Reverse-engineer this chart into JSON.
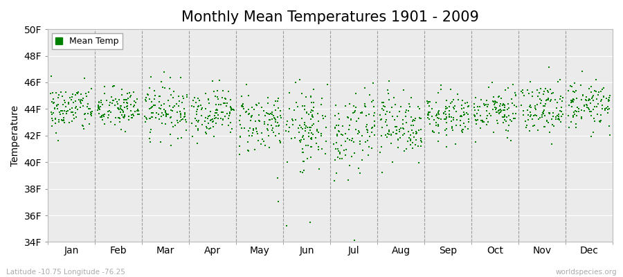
{
  "title": "Monthly Mean Temperatures 1901 - 2009",
  "ylabel": "Temperature",
  "ylim": [
    34,
    50
  ],
  "ytick_labels": [
    "34F",
    "36F",
    "38F",
    "40F",
    "42F",
    "44F",
    "46F",
    "48F",
    "50F"
  ],
  "ytick_values": [
    34,
    36,
    38,
    40,
    42,
    44,
    46,
    48,
    50
  ],
  "months": [
    "Jan",
    "Feb",
    "Mar",
    "Apr",
    "May",
    "Jun",
    "Jul",
    "Aug",
    "Sep",
    "Oct",
    "Nov",
    "Dec"
  ],
  "month_positions": [
    0.5,
    1.5,
    2.5,
    3.5,
    4.5,
    5.5,
    6.5,
    7.5,
    8.5,
    9.5,
    10.5,
    11.5
  ],
  "dot_color": "#008000",
  "bg_color": "#ebebeb",
  "title_fontsize": 15,
  "axis_fontsize": 10,
  "legend_fontsize": 9,
  "footer_left": "Latitude -10.75 Longitude -76.25",
  "footer_right": "worldspecies.org",
  "n_years": 109,
  "seed": 42,
  "mean_temps": [
    44.0,
    44.0,
    44.0,
    43.8,
    43.0,
    42.5,
    42.3,
    42.8,
    43.5,
    43.8,
    44.0,
    44.2
  ],
  "std_temps": [
    0.9,
    0.8,
    1.0,
    0.9,
    1.2,
    1.5,
    1.6,
    1.3,
    0.9,
    0.9,
    0.9,
    0.8
  ],
  "outlier_months_low": [
    4,
    5,
    6
  ],
  "outlier_temps_low": [
    37.0,
    35.5,
    34.0
  ],
  "n_outliers_low": [
    1,
    2,
    2
  ]
}
